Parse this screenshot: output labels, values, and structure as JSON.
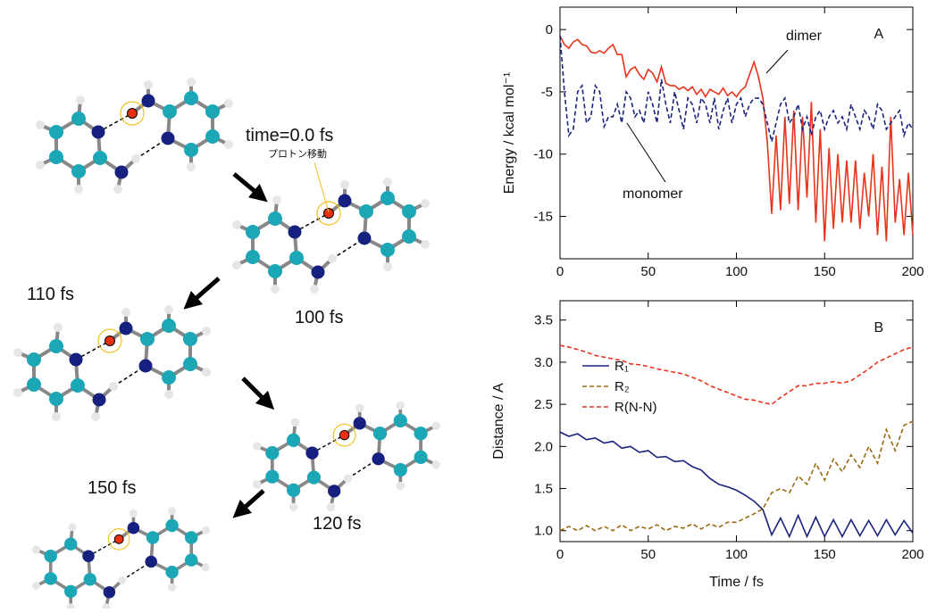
{
  "diagram": {
    "labels": [
      "time=0.0 fs",
      "プロトン移動",
      "100 fs",
      "110 fs",
      "120 fs",
      "150 fs"
    ]
  },
  "chart_data": [
    {
      "type": "line",
      "ylabel": "Energy / kcal mol⁻¹",
      "panel_label": "A",
      "annotations": [
        "dimer",
        "monomer"
      ],
      "xlim": [
        0,
        200
      ],
      "xticks": [
        0,
        50,
        100,
        150,
        200
      ],
      "ylim": [
        -18.4,
        1.8
      ],
      "yticks": [
        0,
        -5,
        -10,
        -15
      ],
      "x": [
        0,
        2.5,
        5,
        7.5,
        10,
        12.5,
        15,
        17.5,
        20,
        22.5,
        25,
        27.5,
        30,
        32.5,
        35,
        37.5,
        40,
        42.5,
        45,
        47.5,
        50,
        52.5,
        55,
        57.5,
        60,
        62.5,
        65,
        67.5,
        70,
        72.5,
        75,
        77.5,
        80,
        82.5,
        85,
        87.5,
        90,
        92.5,
        95,
        97.5,
        100,
        102.5,
        105,
        107.5,
        110,
        112.5,
        115,
        117.5,
        120,
        122.5,
        125,
        127.5,
        130,
        132.5,
        135,
        137.5,
        140,
        142.5,
        145,
        147.5,
        150,
        152.5,
        155,
        157.5,
        160,
        162.5,
        165,
        167.5,
        170,
        172.5,
        175,
        177.5,
        180,
        182.5,
        185,
        187.5,
        190,
        192.5,
        195,
        197.5,
        200
      ],
      "series": [
        {
          "name": "dimer",
          "color": "#e8341c",
          "style": "solid",
          "values": [
            -0.5,
            -1.2,
            -1.5,
            -1.0,
            -0.8,
            -1.2,
            -1.3,
            -1.8,
            -1.9,
            -1.7,
            -1.9,
            -1.5,
            -1.2,
            -2.0,
            -2.0,
            -3.8,
            -3.2,
            -3.0,
            -3.6,
            -4.0,
            -3.2,
            -3.5,
            -4.2,
            -3.0,
            -4.3,
            -4.5,
            -4.5,
            -4.8,
            -4.6,
            -4.9,
            -4.6,
            -5.2,
            -4.8,
            -5.4,
            -4.8,
            -5.0,
            -5.2,
            -4.7,
            -5.3,
            -5.0,
            -5.4,
            -4.9,
            -4.6,
            -3.6,
            -2.6,
            -3.8,
            -5.5,
            -9.0,
            -14.8,
            -8.5,
            -14.5,
            -7.0,
            -14.0,
            -6.5,
            -14.5,
            -7.0,
            -13.5,
            -5.8,
            -15.5,
            -8.0,
            -17.0,
            -9.5,
            -16.0,
            -10.0,
            -15.5,
            -10.5,
            -15.5,
            -10.5,
            -16.0,
            -11.5,
            -15.0,
            -10.0,
            -16.5,
            -11.0,
            -17.0,
            -7.0,
            -15.5,
            -12.0,
            -16.5,
            -11.5,
            -16.5
          ]
        },
        {
          "name": "monomer",
          "color": "#1a237e",
          "style": "dashed",
          "values": [
            -0.5,
            -5,
            -8.5,
            -8,
            -5,
            -4.5,
            -7.5,
            -7,
            -4.5,
            -5,
            -7.8,
            -7,
            -7,
            -6,
            -7.5,
            -5,
            -5.5,
            -7,
            -6.5,
            -7.5,
            -5,
            -6,
            -7.5,
            -4,
            -6,
            -7.5,
            -5,
            -6.5,
            -8,
            -5.5,
            -6,
            -7.5,
            -5.5,
            -6,
            -7.5,
            -5.5,
            -8,
            -6.5,
            -5.5,
            -7.5,
            -6,
            -5.5,
            -7,
            -6,
            -5.5,
            -5.5,
            -6,
            -7.5,
            -9,
            -7.5,
            -6,
            -5.5,
            -7.5,
            -7,
            -6,
            -8,
            -7,
            -8.5,
            -7,
            -6.5,
            -8,
            -7,
            -6.5,
            -7.5,
            -7,
            -8,
            -6,
            -7,
            -8,
            -6.5,
            -7,
            -8,
            -6,
            -6.5,
            -8,
            -7.5,
            -7,
            -6.5,
            -8.5,
            -7.5,
            -8
          ]
        }
      ]
    },
    {
      "type": "line",
      "xlabel": "Time / fs",
      "ylabel": "Distance / A",
      "panel_label": "B",
      "legend": "upper left",
      "xlim": [
        0,
        200
      ],
      "xticks": [
        0,
        50,
        100,
        150,
        200
      ],
      "ylim": [
        0.87,
        3.73
      ],
      "yticks": [
        {
          "value": 1.0,
          "label": "1.0"
        },
        1.5,
        {
          "value": 2.0,
          "label": "2.0"
        },
        2.5,
        {
          "value": 3.0,
          "label": "3.0"
        },
        3.5
      ],
      "x": [
        0,
        5,
        10,
        15,
        20,
        25,
        30,
        35,
        40,
        45,
        50,
        55,
        60,
        65,
        70,
        75,
        80,
        85,
        90,
        95,
        100,
        105,
        110,
        115,
        120,
        125,
        130,
        135,
        140,
        145,
        150,
        155,
        160,
        165,
        170,
        175,
        180,
        185,
        190,
        195,
        200
      ],
      "series": [
        {
          "name": "R₁",
          "color": "#1a237e",
          "style": "solid",
          "values": [
            2.17,
            2.12,
            2.15,
            2.08,
            2.1,
            2.04,
            2.06,
            1.98,
            2.0,
            1.93,
            1.95,
            1.87,
            1.88,
            1.82,
            1.83,
            1.76,
            1.72,
            1.62,
            1.55,
            1.52,
            1.48,
            1.42,
            1.35,
            1.25,
            0.95,
            1.15,
            0.93,
            1.18,
            0.93,
            1.16,
            0.93,
            1.13,
            0.93,
            1.13,
            0.94,
            1.12,
            0.94,
            1.13,
            0.95,
            1.12,
            0.97
          ]
        },
        {
          "name": "R₂",
          "color": "#9a6a10",
          "style": "dashed",
          "values": [
            1.0,
            1.05,
            1.0,
            1.06,
            1.0,
            1.05,
            1.0,
            1.07,
            1.0,
            1.05,
            1.02,
            1.07,
            1.0,
            1.05,
            1.03,
            1.08,
            1.02,
            1.08,
            1.04,
            1.1,
            1.1,
            1.15,
            1.2,
            1.26,
            1.45,
            1.5,
            1.45,
            1.65,
            1.55,
            1.8,
            1.6,
            1.85,
            1.7,
            1.9,
            1.75,
            2.0,
            1.8,
            2.2,
            1.95,
            2.25,
            2.3
          ]
        },
        {
          "name": "R(N-N)",
          "color": "#e8341c",
          "style": "dashed",
          "values": [
            3.2,
            3.18,
            3.15,
            3.12,
            3.08,
            3.06,
            3.04,
            3.02,
            2.98,
            2.97,
            2.95,
            2.92,
            2.9,
            2.88,
            2.86,
            2.82,
            2.78,
            2.72,
            2.68,
            2.64,
            2.6,
            2.56,
            2.55,
            2.52,
            2.5,
            2.58,
            2.65,
            2.72,
            2.72,
            2.75,
            2.75,
            2.77,
            2.75,
            2.78,
            2.85,
            2.92,
            3.0,
            3.05,
            3.1,
            3.15,
            3.18
          ]
        }
      ]
    }
  ]
}
